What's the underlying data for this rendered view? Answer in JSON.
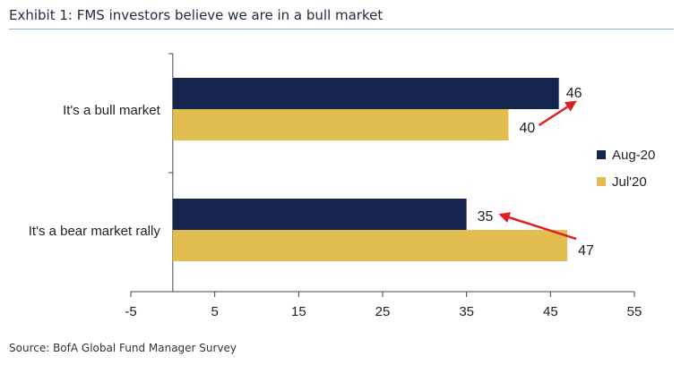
{
  "title": "Exhibit 1: FMS investors believe we are in a bull market",
  "source": "Source: BofA Global Fund Manager Survey",
  "colors": {
    "aug20": "#16254d",
    "jul20": "#e2bd4f",
    "arrow": "#e02020"
  },
  "chart_data": {
    "type": "bar",
    "orientation": "horizontal",
    "categories": [
      "It's a bull market",
      "It's a bear market rally"
    ],
    "series": [
      {
        "name": "Aug-20",
        "values": [
          46,
          35
        ],
        "labels": [
          "46",
          "35"
        ]
      },
      {
        "name": "Jul'20",
        "values": [
          40,
          47
        ],
        "labels": [
          "40",
          "47"
        ]
      }
    ],
    "xlim": [
      -5,
      55
    ],
    "xticks": [
      -5,
      5,
      15,
      25,
      35,
      45,
      55
    ],
    "legend": "right",
    "grid": false
  }
}
